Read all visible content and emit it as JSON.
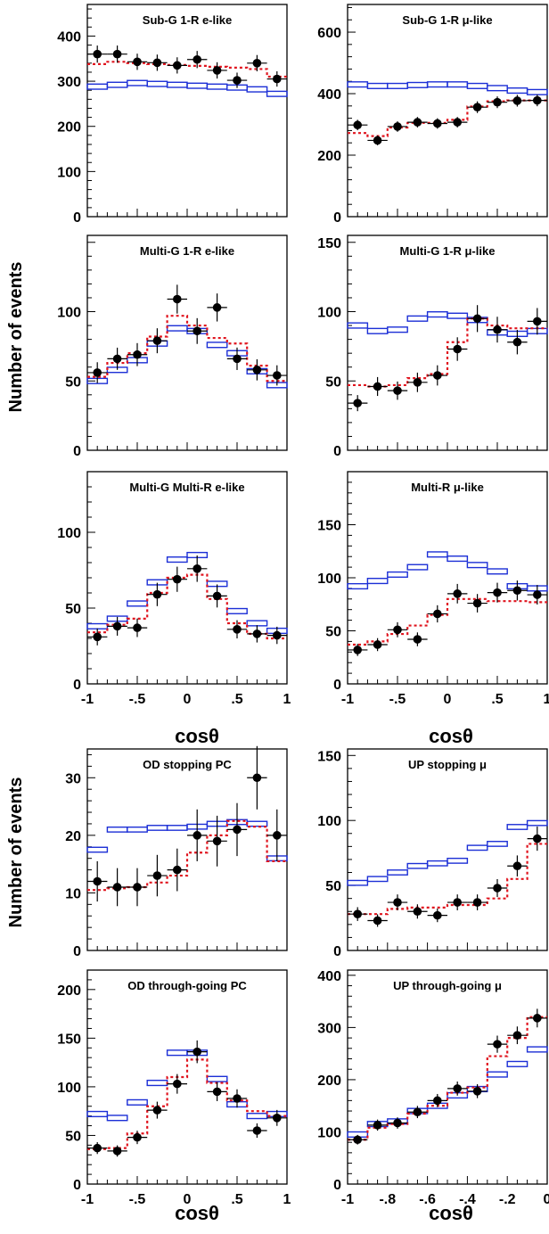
{
  "y_axis_label": "Number of events",
  "colors": {
    "null_mc": "#1c2fd6",
    "oscillated_mc": "#e0141e",
    "data": "#000000"
  },
  "chart_data": [
    {
      "type": "line",
      "title": "Sub-G 1-R e-like",
      "xlabel": "",
      "ylabel": "Number of events",
      "xlim": [
        -1,
        1
      ],
      "ylim": [
        0,
        470
      ],
      "xticks": [],
      "yticks": [
        0,
        100,
        200,
        300,
        400
      ],
      "bin_edges": [
        -1,
        -0.8,
        -0.6,
        -0.4,
        -0.2,
        0,
        0.2,
        0.4,
        0.6,
        0.8,
        1
      ],
      "null_mc": [
        288,
        292,
        296,
        294,
        292,
        290,
        288,
        286,
        282,
        272
      ],
      "oscillated_mc": [
        338,
        343,
        340,
        338,
        336,
        334,
        332,
        330,
        327,
        310
      ],
      "data": {
        "x": [
          -0.9,
          -0.7,
          -0.5,
          -0.3,
          -0.1,
          0.1,
          0.3,
          0.5,
          0.7,
          0.9
        ],
        "y": [
          360,
          360,
          343,
          341,
          335,
          348,
          324,
          302,
          340,
          305
        ],
        "err": [
          19,
          19,
          18,
          18,
          18,
          19,
          18,
          17,
          18,
          17
        ]
      }
    },
    {
      "type": "line",
      "title": "Sub-G 1-R μ-like",
      "xlabel": "",
      "ylabel": "",
      "xlim": [
        -1,
        1
      ],
      "ylim": [
        0,
        690
      ],
      "xticks": [],
      "yticks": [
        0,
        200,
        400,
        600
      ],
      "bin_edges": [
        -1,
        -0.8,
        -0.6,
        -0.4,
        -0.2,
        0,
        0.2,
        0.4,
        0.6,
        0.8,
        1
      ],
      "null_mc": [
        430,
        425,
        425,
        428,
        430,
        430,
        425,
        418,
        410,
        405
      ],
      "oscillated_mc": [
        272,
        262,
        290,
        305,
        305,
        315,
        358,
        375,
        378,
        378
      ],
      "data": {
        "x": [
          -0.9,
          -0.7,
          -0.5,
          -0.3,
          -0.1,
          0.1,
          0.3,
          0.5,
          0.7,
          0.9
        ],
        "y": [
          298,
          248,
          293,
          307,
          303,
          307,
          356,
          372,
          377,
          378
        ],
        "err": [
          17,
          16,
          17,
          17,
          17,
          17,
          19,
          19,
          19,
          19
        ]
      }
    },
    {
      "type": "line",
      "title": "Multi-G 1-R e-like",
      "xlabel": "",
      "ylabel": "Number of events",
      "xlim": [
        -1,
        1
      ],
      "ylim": [
        0,
        155
      ],
      "xticks": [],
      "yticks": [
        0,
        50,
        100
      ],
      "bin_edges": [
        -1,
        -0.8,
        -0.6,
        -0.4,
        -0.2,
        0,
        0.2,
        0.4,
        0.6,
        0.8,
        1
      ],
      "null_mc": [
        50,
        58,
        65,
        77,
        88,
        86,
        76,
        70,
        57,
        47
      ],
      "oscillated_mc": [
        53,
        63,
        70,
        82,
        97,
        90,
        81,
        77,
        61,
        50
      ],
      "data": {
        "x": [
          -0.9,
          -0.7,
          -0.5,
          -0.3,
          -0.1,
          0.1,
          0.3,
          0.5,
          0.7,
          0.9
        ],
        "y": [
          56,
          66,
          69,
          79,
          109,
          86,
          103,
          66,
          58,
          54
        ],
        "err": [
          7.5,
          8,
          8.3,
          9,
          10.4,
          9.3,
          10.1,
          8.1,
          7.6,
          7.3
        ]
      }
    },
    {
      "type": "line",
      "title": "Multi-G 1-R μ-like",
      "xlabel": "",
      "ylabel": "",
      "xlim": [
        -1,
        1
      ],
      "ylim": [
        0,
        155
      ],
      "xticks": [],
      "yticks": [
        0,
        50,
        100,
        150
      ],
      "bin_edges": [
        -1,
        -0.8,
        -0.6,
        -0.4,
        -0.2,
        0,
        0.2,
        0.4,
        0.6,
        0.8,
        1
      ],
      "null_mc": [
        90,
        86,
        87,
        95,
        98,
        97,
        94,
        85,
        84,
        86
      ],
      "oscillated_mc": [
        47,
        46,
        47,
        52,
        55,
        78,
        95,
        90,
        88,
        88
      ],
      "data": {
        "x": [
          -0.9,
          -0.7,
          -0.5,
          -0.3,
          -0.1,
          0.1,
          0.3,
          0.5,
          0.7,
          0.9
        ],
        "y": [
          34,
          46,
          43,
          49,
          54,
          73,
          95,
          87,
          78,
          93
        ],
        "err": [
          5.8,
          6.8,
          6.6,
          7,
          7.3,
          8.5,
          9.7,
          9.3,
          8.8,
          9.6
        ]
      }
    },
    {
      "type": "line",
      "title": "Multi-G Multi-R e-like",
      "xlabel": "cosθ",
      "ylabel": "Number of events",
      "xlim": [
        -1,
        1
      ],
      "ylim": [
        0,
        140
      ],
      "xticks": [
        -1,
        -0.5,
        0,
        0.5,
        1
      ],
      "yticks": [
        0,
        50,
        100
      ],
      "bin_edges": [
        -1,
        -0.8,
        -0.6,
        -0.4,
        -0.2,
        0,
        0.2,
        0.4,
        0.6,
        0.8,
        1
      ],
      "null_mc": [
        38,
        43,
        53,
        67,
        82,
        85,
        66,
        48,
        40,
        35
      ],
      "oscillated_mc": [
        34,
        39,
        43,
        60,
        70,
        72,
        56,
        40,
        33,
        30
      ],
      "data": {
        "x": [
          -0.9,
          -0.7,
          -0.5,
          -0.3,
          -0.1,
          0.1,
          0.3,
          0.5,
          0.7,
          0.9
        ],
        "y": [
          31,
          38,
          37,
          59,
          69,
          76,
          58,
          36,
          33,
          32
        ],
        "err": [
          5.6,
          6.2,
          6.1,
          7.7,
          8.3,
          8.7,
          7.6,
          6,
          5.7,
          5.7
        ]
      }
    },
    {
      "type": "line",
      "title": "Multi-R μ-like",
      "xlabel": "cosθ",
      "ylabel": "",
      "xlim": [
        -1,
        1
      ],
      "ylim": [
        0,
        200
      ],
      "xticks": [
        -1,
        -0.5,
        0,
        0.5,
        1
      ],
      "yticks": [
        0,
        50,
        100,
        150
      ],
      "bin_edges": [
        -1,
        -0.8,
        -0.6,
        -0.4,
        -0.2,
        0,
        0.2,
        0.4,
        0.6,
        0.8,
        1
      ],
      "null_mc": [
        92,
        97,
        103,
        110,
        122,
        118,
        112,
        106,
        92,
        90
      ],
      "oscillated_mc": [
        37,
        40,
        47,
        55,
        65,
        80,
        80,
        78,
        78,
        77
      ],
      "data": {
        "x": [
          -0.9,
          -0.7,
          -0.5,
          -0.3,
          -0.1,
          0.1,
          0.3,
          0.5,
          0.7,
          0.9
        ],
        "y": [
          32,
          37,
          51,
          42,
          66,
          85,
          76,
          86,
          88,
          84
        ],
        "err": [
          5.7,
          6.1,
          7.1,
          6.5,
          8.1,
          9.2,
          8.7,
          9.3,
          9.4,
          9.2
        ]
      }
    },
    {
      "type": "line",
      "title": "OD stopping PC",
      "xlabel": "",
      "ylabel": "Number of events",
      "xlim": [
        -1,
        1
      ],
      "ylim": [
        0,
        35
      ],
      "xticks": [],
      "yticks": [
        0,
        10,
        20,
        30
      ],
      "bin_edges": [
        -1,
        -0.8,
        -0.6,
        -0.4,
        -0.2,
        0,
        0.2,
        0.4,
        0.6,
        0.8,
        1
      ],
      "null_mc": [
        17.5,
        21,
        21,
        21.3,
        21.3,
        21.5,
        22,
        22.3,
        22,
        16
      ],
      "oscillated_mc": [
        10.5,
        10.8,
        11,
        11.8,
        13,
        17,
        20,
        22.5,
        21.5,
        15.5
      ],
      "data": {
        "x": [
          -0.9,
          -0.7,
          -0.5,
          -0.3,
          -0.1,
          0.1,
          0.3,
          0.5,
          0.7,
          0.9
        ],
        "y": [
          12,
          11,
          11,
          13,
          14,
          20,
          19,
          21,
          30,
          20
        ],
        "err": [
          3.5,
          3.3,
          3.3,
          3.6,
          3.7,
          4.5,
          4.4,
          4.6,
          5.5,
          4.5
        ]
      }
    },
    {
      "type": "line",
      "title": "UP stopping μ",
      "xlabel": "",
      "ylabel": "",
      "xlim": [
        -1,
        0
      ],
      "ylim": [
        0,
        155
      ],
      "xticks": [],
      "yticks": [
        0,
        50,
        100,
        150
      ],
      "bin_edges": [
        -1,
        -0.9,
        -0.8,
        -0.7,
        -0.6,
        -0.5,
        -0.4,
        -0.3,
        -0.2,
        -0.1,
        0
      ],
      "null_mc": [
        52,
        55,
        60,
        65,
        67,
        69,
        79,
        82,
        95,
        98
      ],
      "oscillated_mc": [
        28,
        28,
        32,
        33,
        33,
        35,
        35,
        40,
        55,
        82
      ],
      "data": {
        "x": [
          -0.95,
          -0.85,
          -0.75,
          -0.65,
          -0.55,
          -0.45,
          -0.35,
          -0.25,
          -0.15,
          -0.05
        ],
        "y": [
          28,
          23,
          37,
          30,
          27,
          37,
          37,
          48,
          65,
          86
        ],
        "err": [
          5.3,
          4.8,
          6.1,
          5.5,
          5.2,
          6.1,
          6.1,
          6.9,
          8.1,
          9.3
        ]
      }
    },
    {
      "type": "line",
      "title": "OD through-going PC",
      "xlabel": "cosθ",
      "ylabel": "Number of events",
      "xlim": [
        -1,
        1
      ],
      "ylim": [
        0,
        220
      ],
      "xticks": [
        -1,
        -0.5,
        0,
        0.5,
        1
      ],
      "yticks": [
        0,
        50,
        100,
        150,
        200
      ],
      "bin_edges": [
        -1,
        -0.8,
        -0.6,
        -0.4,
        -0.2,
        0,
        0.2,
        0.4,
        0.6,
        0.8,
        1
      ],
      "null_mc": [
        72,
        68,
        84,
        104,
        135,
        135,
        108,
        82,
        70,
        72
      ],
      "oscillated_mc": [
        36,
        37,
        52,
        80,
        110,
        128,
        104,
        86,
        75,
        70
      ],
      "data": {
        "x": [
          -0.9,
          -0.7,
          -0.5,
          -0.3,
          -0.1,
          0.1,
          0.3,
          0.5,
          0.7,
          0.9
        ],
        "y": [
          37,
          34,
          48,
          76,
          103,
          136,
          95,
          88,
          55,
          68
        ],
        "err": [
          6.1,
          5.8,
          6.9,
          8.7,
          10.1,
          11.7,
          9.7,
          9.4,
          7.4,
          8.2
        ]
      }
    },
    {
      "type": "line",
      "title": "UP through-going μ",
      "xlabel": "cosθ",
      "ylabel": "",
      "xlim": [
        -1,
        0
      ],
      "ylim": [
        0,
        410
      ],
      "xticks": [
        -1,
        -0.8,
        -0.6,
        -0.4,
        -0.2,
        0
      ],
      "yticks": [
        0,
        100,
        200,
        300,
        400
      ],
      "bin_edges": [
        -1,
        -0.9,
        -0.8,
        -0.7,
        -0.6,
        -0.5,
        -0.4,
        -0.3,
        -0.2,
        -0.1,
        0
      ],
      "null_mc": [
        95,
        115,
        120,
        140,
        150,
        170,
        182,
        210,
        230,
        258
      ],
      "oscillated_mc": [
        85,
        108,
        115,
        135,
        150,
        175,
        185,
        245,
        280,
        320
      ],
      "data": {
        "x": [
          -0.95,
          -0.85,
          -0.75,
          -0.65,
          -0.55,
          -0.45,
          -0.35,
          -0.25,
          -0.15,
          -0.05
        ],
        "y": [
          85,
          113,
          117,
          138,
          160,
          183,
          178,
          268,
          285,
          318
        ],
        "err": [
          9.2,
          10.6,
          10.8,
          11.7,
          12.6,
          13.5,
          13.3,
          16.4,
          16.9,
          17.8
        ]
      }
    }
  ]
}
